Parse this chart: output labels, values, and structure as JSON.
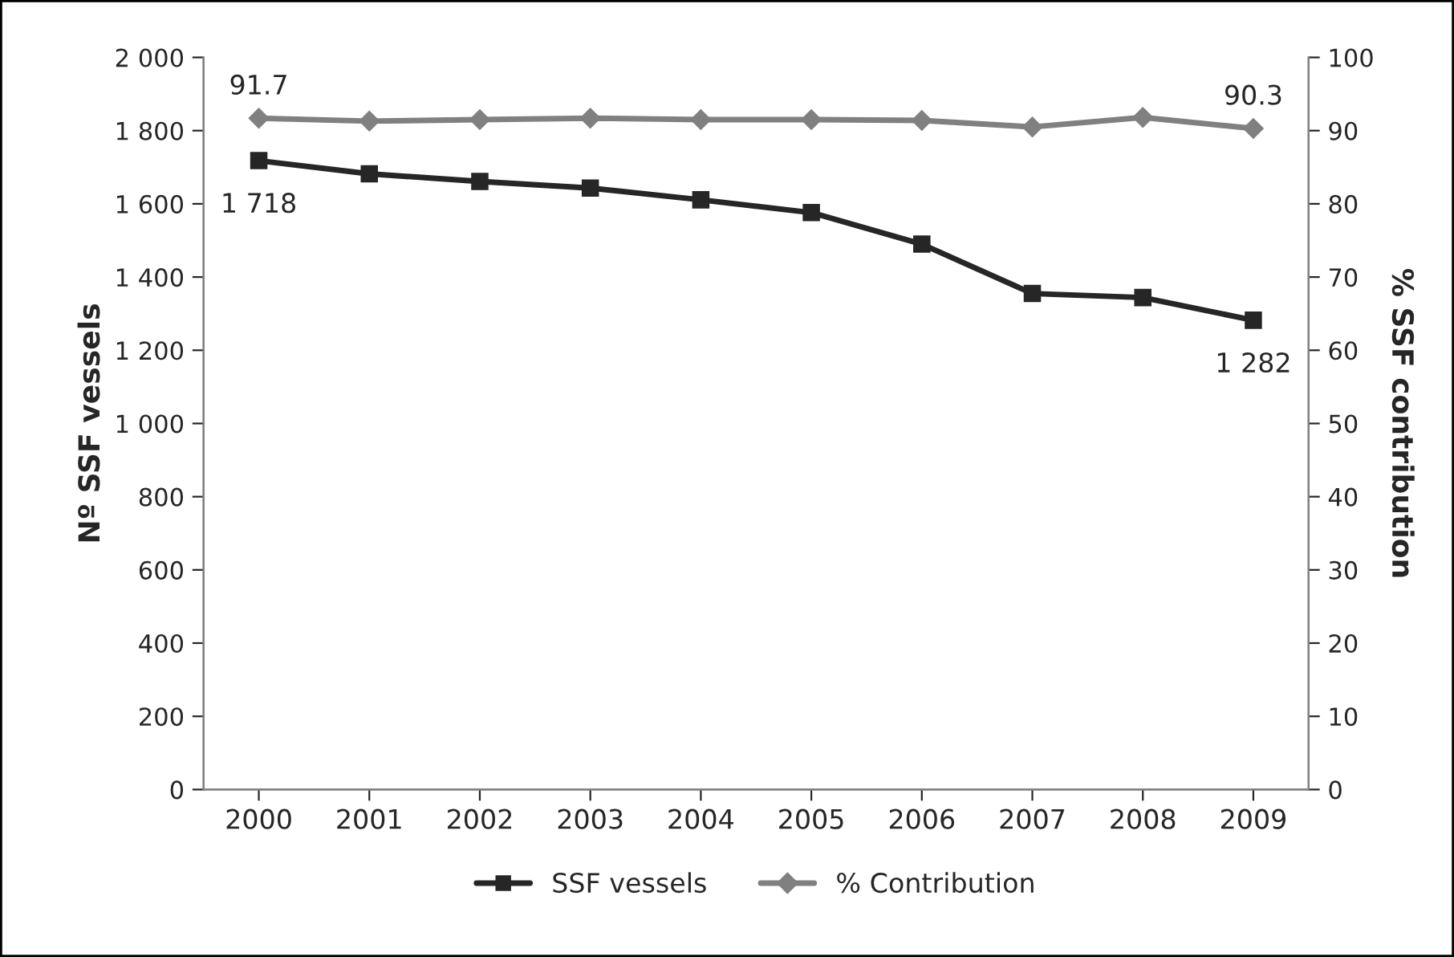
{
  "chart_data": {
    "type": "line",
    "categories": [
      "2000",
      "2001",
      "2002",
      "2003",
      "2004",
      "2005",
      "2006",
      "2007",
      "2008",
      "2009"
    ],
    "ylabel": "Nº SSF vessels",
    "y2label": "% SSF contribution",
    "series": [
      {
        "name": "SSF vessels",
        "color": "#262626",
        "marker": "square",
        "values": [
          1718,
          1682,
          1661,
          1643,
          1611,
          1576,
          1490,
          1355,
          1344,
          1282
        ],
        "value_labels": [
          "1 718",
          null,
          null,
          null,
          null,
          null,
          null,
          null,
          null,
          "1 282"
        ]
      },
      {
        "name": "% Contribution",
        "color": "#808080",
        "marker": "diamond",
        "axis": "y2",
        "values": [
          91.7,
          91.3,
          91.5,
          91.7,
          91.5,
          91.5,
          91.4,
          90.5,
          91.8,
          90.3
        ],
        "value_labels": [
          "91.7",
          null,
          null,
          null,
          null,
          null,
          null,
          null,
          null,
          "90.3"
        ]
      }
    ],
    "ylim": [
      0,
      2000
    ],
    "yticks": [
      0,
      200,
      400,
      600,
      800,
      {
        "value": 1000,
        "label": "1 000"
      },
      {
        "value": 1200,
        "label": "1 200"
      },
      {
        "value": 1400,
        "label": "1 400"
      },
      {
        "value": 1600,
        "label": "1 600"
      },
      {
        "value": 1800,
        "label": "1 800"
      },
      {
        "value": 2000,
        "label": "2 000"
      }
    ],
    "y2lim": [
      0,
      100
    ],
    "y2ticks": [
      0,
      10,
      20,
      30,
      40,
      50,
      60,
      70,
      80,
      90,
      100
    ],
    "grid": false,
    "legend": "bottom",
    "line_style": "solid"
  }
}
